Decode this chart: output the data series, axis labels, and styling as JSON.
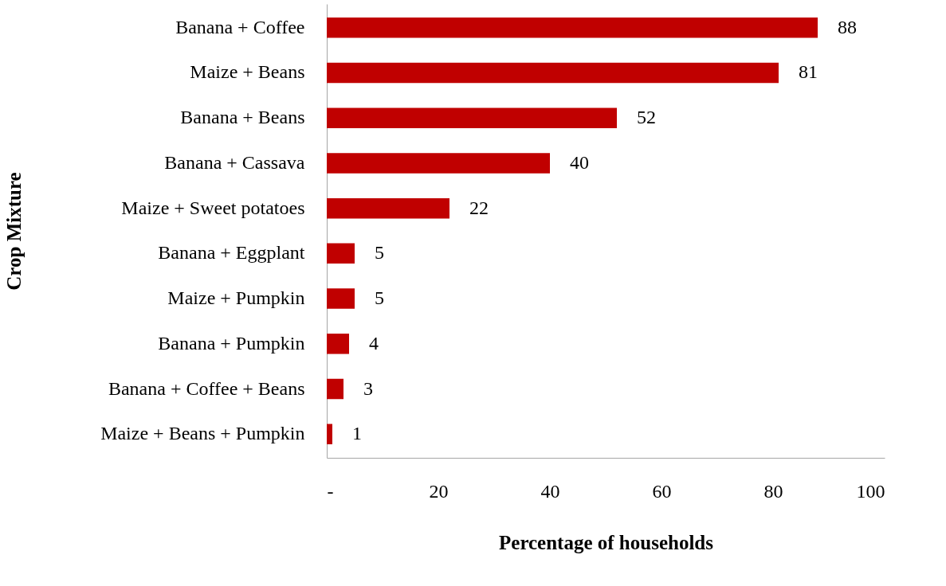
{
  "chart_data": {
    "type": "bar",
    "orientation": "horizontal",
    "categories": [
      "Banana + Coffee",
      "Maize + Beans",
      "Banana + Beans",
      "Banana + Cassava",
      "Maize + Sweet potatoes",
      "Banana + Eggplant",
      "Maize + Pumpkin",
      "Banana + Pumpkin",
      "Banana + Coffee + Beans",
      "Maize + Beans + Pumpkin"
    ],
    "values": [
      88,
      81,
      52,
      40,
      22,
      5,
      5,
      4,
      3,
      1
    ],
    "color": "#c00000",
    "xlabel": "Percentage of households",
    "ylabel": "Crop Mixture",
    "xlim": [
      0,
      100
    ],
    "xticks": [
      {
        "value": 0,
        "label": "-"
      },
      20,
      40,
      60,
      80,
      100
    ],
    "data_labels": true,
    "grid": false
  }
}
